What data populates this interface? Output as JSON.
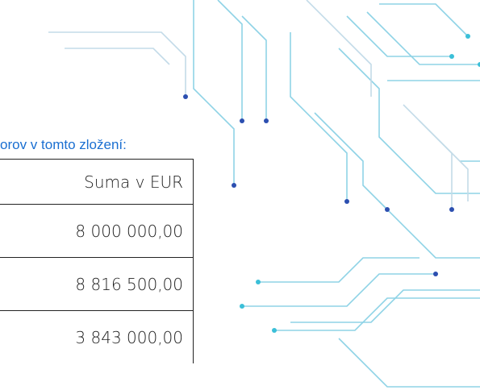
{
  "intro_text": "orov v tomto zložení:",
  "table": {
    "header": "Suma v EUR",
    "rows": [
      "8 000 000,00",
      "8 816 500,00",
      "3 843 000,00"
    ]
  }
}
